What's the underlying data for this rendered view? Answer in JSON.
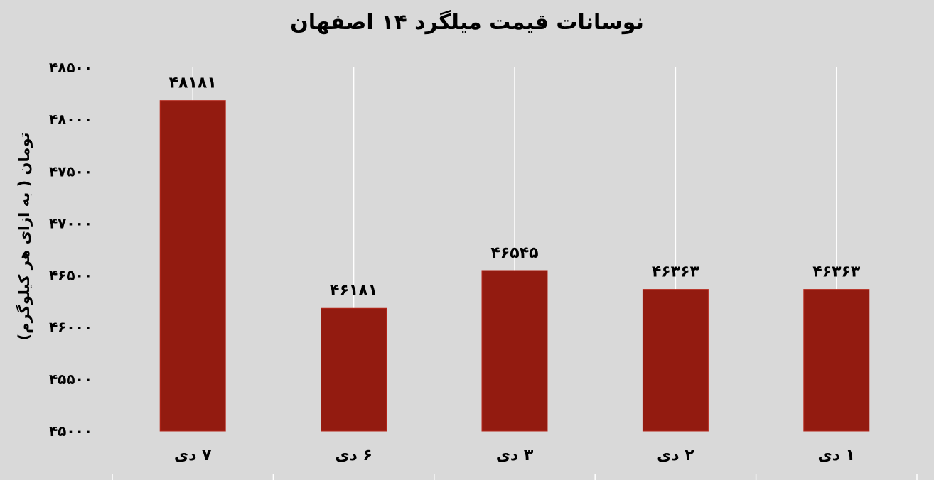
{
  "chart_data": {
    "type": "bar",
    "title": "نوسانات قیمت میلگرد ۱۴ اصفهان",
    "xlabel": "",
    "ylabel": "تومان ( به ازای هر کیلوگرم)",
    "categories": [
      "۷ دی",
      "۶ دی",
      "۳ دی",
      "۲ دی",
      "۱ دی"
    ],
    "values": [
      48181,
      46181,
      46545,
      46363,
      46363
    ],
    "value_labels": [
      "۴۸۱۸۱",
      "۴۶۱۸۱",
      "۴۶۵۴۵",
      "۴۶۳۶۳",
      "۴۶۳۶۳"
    ],
    "ylim": [
      45000,
      48500
    ],
    "yticks": [
      45000,
      45500,
      46000,
      46500,
      47000,
      47500,
      48000,
      48500
    ],
    "ytick_labels": [
      "۴۵۰۰۰",
      "۴۵۵۰۰",
      "۴۶۰۰۰",
      "۴۶۵۰۰",
      "۴۷۰۰۰",
      "۴۷۵۰۰",
      "۴۸۰۰۰",
      "۴۸۵۰۰"
    ],
    "bar_color": "#931b10",
    "background_color": "#d9d9d9",
    "grid": "vertical",
    "legend": "none"
  }
}
